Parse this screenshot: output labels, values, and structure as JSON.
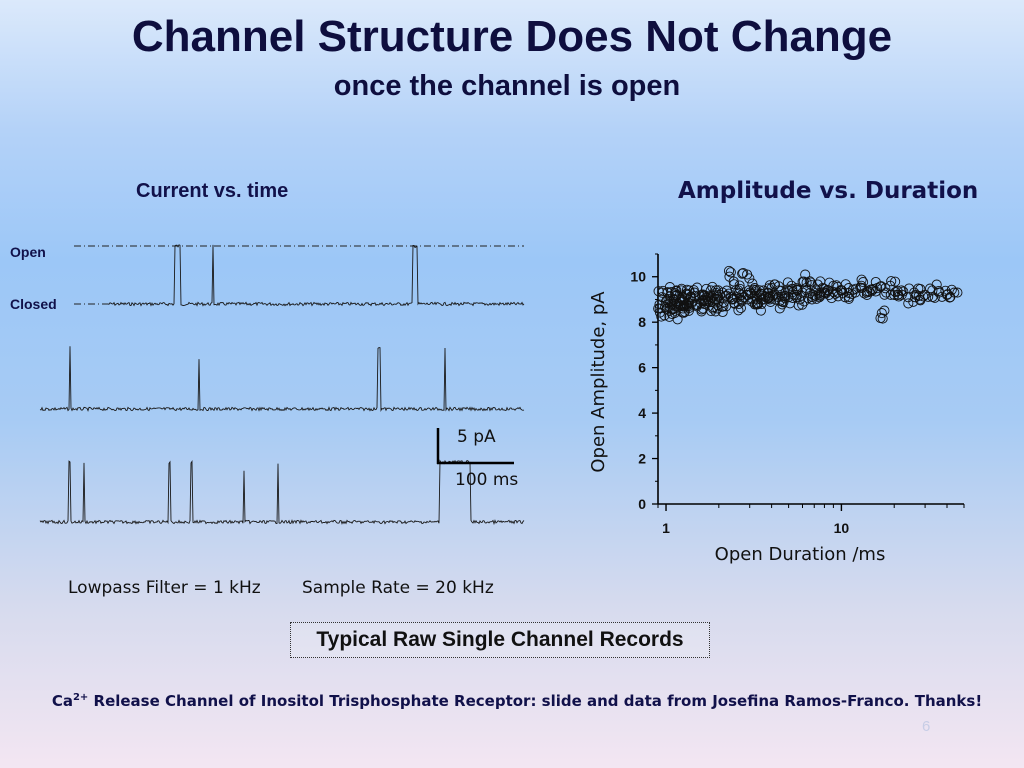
{
  "slide": {
    "title": "Channel Structure Does Not Change",
    "subtitle": "once the channel is open",
    "left_panel_title": "Current vs. time",
    "right_panel_title": "Amplitude vs. Duration",
    "open_label": "Open",
    "closed_label": "Closed",
    "scale_current": "5 pA",
    "scale_time": "100 ms",
    "filter_text": "Lowpass Filter = 1 kHz",
    "rate_text": "Sample Rate = 20 kHz",
    "boxed_caption": "Typical Raw Single Channel Records",
    "credit_prefix": "Ca",
    "credit_sup": "2+",
    "credit_rest": " Release Channel of Inositol Trisphosphate Receptor: slide and data from Josefina Ramos-Franco. Thanks!",
    "slide_number": "6"
  },
  "colors": {
    "title": "#0e0e3e",
    "trace": "#1a1a1a",
    "marker": "#111111"
  },
  "chart_data": [
    {
      "type": "line",
      "description_kind": "single-channel current traces",
      "title": "Current vs. time",
      "levels": [
        "Open",
        "Closed"
      ],
      "traces": [
        {
          "x_ms": [
            0,
            95,
            95.5,
            103,
            103.5,
            149,
            149.5,
            150.5,
            151,
            437,
            437.5,
            444,
            444.5,
            597
          ],
          "state": [
            0,
            0,
            1,
            1,
            0,
            0,
            1,
            1,
            0,
            0,
            1,
            1,
            0,
            0
          ]
        },
        {
          "x_ms": [
            0,
            36,
            36.5,
            37.5,
            38,
            195,
            195.5,
            196,
            196.5,
            416,
            416.5,
            420,
            420.5,
            498,
            498.5,
            500,
            500.5,
            597
          ],
          "state": [
            0,
            0,
            1,
            1,
            0,
            0,
            0.8,
            0.8,
            0,
            0,
            1,
            1,
            0,
            0,
            1,
            1,
            0,
            0
          ]
        },
        {
          "x_ms": [
            0,
            35,
            35.5,
            37,
            37.5,
            53,
            53.5,
            55,
            55.5,
            158,
            158.5,
            160,
            160.5,
            185,
            185.5,
            187,
            187.5,
            250,
            250.5,
            252,
            252.5,
            292,
            292.5,
            294,
            294.5,
            492,
            492.5,
            530,
            530.5,
            597
          ],
          "state": [
            0,
            0,
            1,
            1,
            0,
            0,
            1,
            1,
            0,
            0,
            1,
            1,
            0,
            0,
            1,
            1,
            0,
            0,
            0.85,
            0.85,
            0,
            0,
            1,
            1,
            0,
            0,
            1,
            1,
            0,
            0
          ]
        }
      ]
    },
    {
      "type": "scatter",
      "title": "Amplitude vs. Duration",
      "xlabel": "Open Duration /ms",
      "ylabel": "Open Amplitude, pA",
      "xscale": "log",
      "xlim": [
        0.9,
        50
      ],
      "ylim": [
        0,
        11
      ],
      "xticks": [
        1,
        10
      ],
      "yticks": [
        0,
        2,
        4,
        6,
        8,
        10
      ],
      "grid": false,
      "points": [
        [
          0.92,
          8.6
        ],
        [
          0.95,
          9.1
        ],
        [
          0.98,
          8.3
        ],
        [
          1.0,
          8.9
        ],
        [
          1.02,
          9.3
        ],
        [
          1.05,
          8.5
        ],
        [
          1.08,
          8.8
        ],
        [
          1.1,
          9.0
        ],
        [
          1.12,
          8.4
        ],
        [
          1.15,
          9.2
        ],
        [
          1.18,
          8.7
        ],
        [
          1.2,
          8.9
        ],
        [
          1.22,
          9.4
        ],
        [
          1.25,
          8.6
        ],
        [
          1.28,
          9.0
        ],
        [
          1.3,
          8.8
        ],
        [
          1.32,
          9.2
        ],
        [
          1.35,
          8.5
        ],
        [
          1.38,
          9.1
        ],
        [
          1.4,
          8.9
        ],
        [
          1.45,
          9.3
        ],
        [
          1.5,
          8.7
        ],
        [
          1.55,
          9.0
        ],
        [
          1.6,
          9.2
        ],
        [
          1.65,
          8.8
        ],
        [
          1.7,
          9.1
        ],
        [
          1.75,
          8.9
        ],
        [
          1.8,
          9.4
        ],
        [
          1.85,
          8.6
        ],
        [
          1.9,
          9.0
        ],
        [
          1.95,
          9.2
        ],
        [
          2.0,
          8.9
        ],
        [
          2.1,
          9.3
        ],
        [
          2.2,
          8.7
        ],
        [
          2.3,
          10.0
        ],
        [
          2.35,
          9.1
        ],
        [
          2.4,
          9.0
        ],
        [
          2.5,
          9.4
        ],
        [
          2.6,
          8.8
        ],
        [
          2.7,
          9.2
        ],
        [
          2.8,
          9.1
        ],
        [
          2.9,
          10.1
        ],
        [
          3.0,
          9.3
        ],
        [
          3.1,
          8.9
        ],
        [
          3.2,
          9.5
        ],
        [
          3.3,
          9.0
        ],
        [
          3.4,
          9.2
        ],
        [
          3.5,
          8.8
        ],
        [
          3.6,
          9.4
        ],
        [
          3.7,
          9.1
        ],
        [
          3.8,
          9.3
        ],
        [
          3.9,
          9.0
        ],
        [
          4.0,
          9.5
        ],
        [
          4.2,
          9.2
        ],
        [
          4.4,
          9.4
        ],
        [
          4.6,
          8.9
        ],
        [
          4.8,
          9.3
        ],
        [
          5.0,
          9.1
        ],
        [
          5.2,
          9.6
        ],
        [
          5.4,
          9.2
        ],
        [
          5.6,
          9.4
        ],
        [
          5.8,
          9.0
        ],
        [
          6.0,
          9.3
        ],
        [
          6.3,
          9.5
        ],
        [
          6.6,
          9.8
        ],
        [
          6.9,
          9.2
        ],
        [
          7.2,
          9.4
        ],
        [
          7.5,
          9.1
        ],
        [
          7.8,
          9.5
        ],
        [
          8.1,
          9.3
        ],
        [
          8.5,
          9.2
        ],
        [
          9.0,
          9.6
        ],
        [
          9.5,
          9.3
        ],
        [
          10.0,
          9.4
        ],
        [
          10.5,
          9.1
        ],
        [
          11.0,
          9.5
        ],
        [
          12.0,
          9.3
        ],
        [
          13.0,
          9.6
        ],
        [
          14.0,
          9.2
        ],
        [
          15.0,
          9.4
        ],
        [
          16.0,
          9.5
        ],
        [
          17.0,
          8.4
        ],
        [
          18.0,
          9.3
        ],
        [
          19.0,
          9.6
        ],
        [
          20.0,
          9.2
        ],
        [
          22.0,
          9.4
        ],
        [
          24.0,
          9.1
        ],
        [
          26.0,
          9.3
        ],
        [
          28.0,
          9.0
        ],
        [
          30.0,
          9.2
        ],
        [
          33.0,
          9.4
        ],
        [
          36.0,
          9.3
        ],
        [
          40.0,
          9.2
        ],
        [
          44.0,
          9.3
        ]
      ]
    }
  ]
}
